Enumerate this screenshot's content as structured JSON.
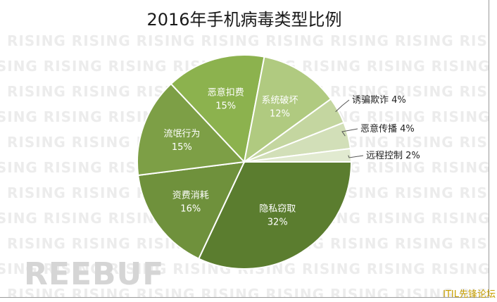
{
  "chart_data": {
    "type": "pie",
    "title": "2016年手机病毒类型比例",
    "slices": [
      {
        "label": "隐私窃取",
        "value": 32,
        "display": "32%",
        "color": "#5b7d2f",
        "text_color": "#ffffff",
        "label_mode": "inside"
      },
      {
        "label": "资费消耗",
        "value": 16,
        "display": "16%",
        "color": "#6f913c",
        "text_color": "#ffffff",
        "label_mode": "inside"
      },
      {
        "label": "流氓行为",
        "value": 15,
        "display": "15%",
        "color": "#7d9f46",
        "text_color": "#ffffff",
        "label_mode": "inside"
      },
      {
        "label": "恶意扣费",
        "value": 15,
        "display": "15%",
        "color": "#8cb24e",
        "text_color": "#ffffff",
        "label_mode": "inside"
      },
      {
        "label": "系统破坏",
        "value": 12,
        "display": "12%",
        "color": "#b0ca80",
        "text_color": "#ffffff",
        "label_mode": "inside"
      },
      {
        "label": "诱骗欺诈",
        "value": 4,
        "display": "4%",
        "color": "#c4d6a0",
        "text_color": "#222222",
        "label_mode": "outside"
      },
      {
        "label": "恶意传播",
        "value": 4,
        "display": "4%",
        "color": "#d2dfb8",
        "text_color": "#222222",
        "label_mode": "outside"
      },
      {
        "label": "远程控制",
        "value": 2,
        "display": "2%",
        "color": "#e1ead0",
        "text_color": "#222222",
        "label_mode": "outside"
      }
    ]
  },
  "watermark_text": "RISING RISING RISING RISING RISING RISING RISING RISING",
  "logo_text": "REEBUF",
  "corner_text": "ITIL先锋论坛"
}
